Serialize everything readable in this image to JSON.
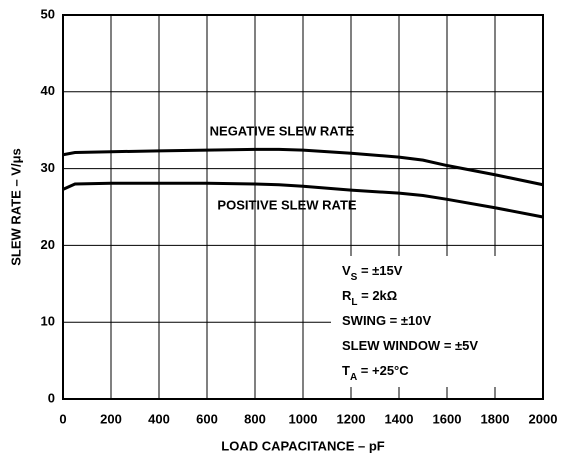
{
  "chart_data": {
    "type": "line",
    "xlabel": "LOAD CAPACITANCE – pF",
    "ylabel": "SLEW RATE – V/μs",
    "x": [
      0,
      50,
      200,
      400,
      600,
      800,
      900,
      1000,
      1200,
      1400,
      1500,
      1600,
      1800,
      2000
    ],
    "series": [
      {
        "name": "NEGATIVE SLEW RATE",
        "color": "#000000",
        "values": [
          31.8,
          32.1,
          32.2,
          32.3,
          32.4,
          32.5,
          32.5,
          32.4,
          32.0,
          31.5,
          31.1,
          30.4,
          29.2,
          27.9
        ]
      },
      {
        "name": "POSITIVE SLEW RATE",
        "color": "#000000",
        "values": [
          27.3,
          28.0,
          28.1,
          28.1,
          28.1,
          28.0,
          27.9,
          27.7,
          27.2,
          26.8,
          26.5,
          26.0,
          24.9,
          23.7
        ]
      }
    ],
    "xlim": [
      0,
      2000
    ],
    "xticks": [
      0,
      200,
      400,
      600,
      800,
      1000,
      1200,
      1400,
      1600,
      1800,
      2000
    ],
    "ylim": [
      0,
      50
    ],
    "yticks": [
      0,
      10,
      20,
      30,
      40,
      50
    ],
    "grid": true,
    "conditions": [
      {
        "main": "V",
        "sub": "S",
        "rest": " = ±15V"
      },
      {
        "main": "R",
        "sub": "L",
        "rest": " = 2kΩ"
      },
      {
        "main": "SWING = ±10V"
      },
      {
        "main": "SLEW WINDOW = ±5V"
      },
      {
        "main": "T",
        "sub": "A",
        "rest": " = +25°C"
      }
    ]
  }
}
